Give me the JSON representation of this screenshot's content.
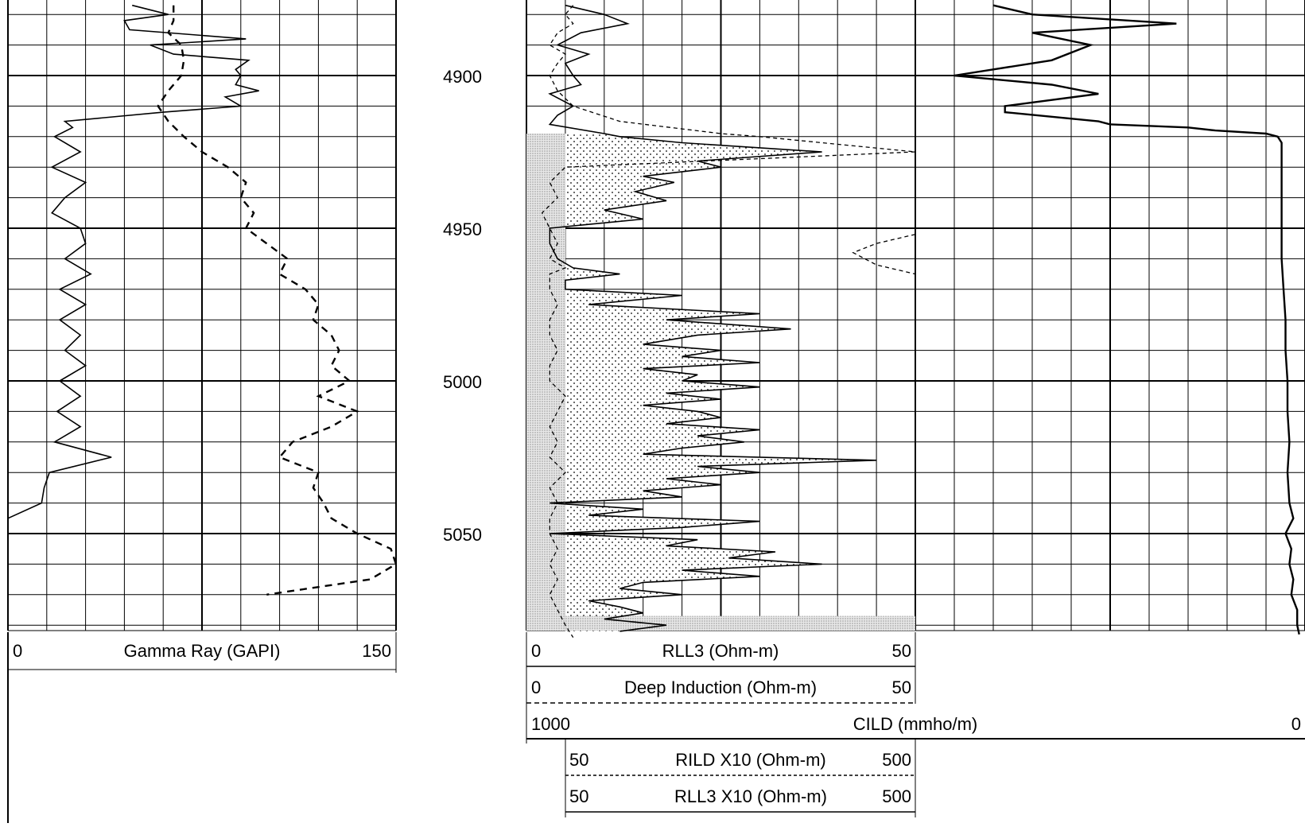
{
  "chart_data": {
    "type": "line",
    "title": "",
    "depth_axis": {
      "ticks": [
        "4900",
        "4950",
        "5000",
        "5050"
      ],
      "range": [
        4877,
        5085
      ]
    },
    "track1": {
      "name": "Gamma Ray (GAPI)",
      "min_label": "0",
      "max_label": "150",
      "range": [
        0,
        150
      ],
      "series": [
        {
          "name": "Gamma Ray (GAPI)",
          "style": "solid",
          "depth": [
            4877,
            4880,
            4882,
            4885,
            4888,
            4890,
            4893,
            4895,
            4898,
            4900,
            4903,
            4905,
            4907,
            4910,
            4912,
            4915,
            4917,
            4920,
            4925,
            4930,
            4935,
            4940,
            4945,
            4950,
            4955,
            4960,
            4965,
            4970,
            4975,
            4980,
            4985,
            4990,
            4995,
            5000,
            5005,
            5010,
            5015,
            5020,
            5025,
            5030,
            5035,
            5040,
            5045
          ],
          "values": [
            48,
            62,
            45,
            47,
            92,
            55,
            64,
            93,
            88,
            90,
            88,
            97,
            84,
            90,
            60,
            22,
            25,
            18,
            28,
            17,
            30,
            22,
            17,
            28,
            30,
            22,
            32,
            20,
            30,
            20,
            28,
            22,
            30,
            20,
            28,
            19,
            28,
            18,
            40,
            16,
            14,
            13,
            0
          ]
        },
        {
          "name": "Gamma Ray (GAPI) - curve 2",
          "style": "dashed",
          "depth": [
            4877,
            4882,
            4886,
            4890,
            4895,
            4900,
            4905,
            4910,
            4915,
            4920,
            4925,
            4930,
            4935,
            4940,
            4945,
            4950,
            4955,
            4960,
            4965,
            4970,
            4975,
            4980,
            4985,
            4990,
            4995,
            5000,
            5005,
            5010,
            5015,
            5020,
            5025,
            5030,
            5035,
            5040,
            5045,
            5050,
            5055,
            5060,
            5065,
            5070
          ],
          "values": [
            64,
            64,
            62,
            67,
            68,
            67,
            62,
            58,
            62,
            68,
            75,
            85,
            92,
            90,
            95,
            92,
            100,
            108,
            105,
            115,
            120,
            118,
            125,
            128,
            125,
            132,
            120,
            135,
            125,
            110,
            105,
            120,
            118,
            122,
            125,
            135,
            148,
            150,
            140,
            100
          ]
        }
      ]
    },
    "track2": {
      "curves": [
        {
          "name": "RLL3 (Ohm-m)",
          "min_label": "0",
          "max_label": "50",
          "style": "solid"
        },
        {
          "name": "Deep Induction (Ohm-m)",
          "min_label": "0",
          "max_label": "50",
          "style": "dashed"
        },
        {
          "name": "CILD (mmho/m)",
          "min_label": "1000",
          "max_label": "0",
          "style": "solid"
        },
        {
          "name": "RILD X10 (Ohm-m)",
          "min_label": "50",
          "max_label": "500",
          "style": "dashed"
        },
        {
          "name": "RLL3 X10 (Ohm-m)",
          "min_label": "50",
          "max_label": "500",
          "style": "solid"
        }
      ],
      "range": [
        0,
        50
      ],
      "series": [
        {
          "name": "RLL3 (Ohm-m)",
          "depth": [
            4877,
            4880,
            4883,
            4886,
            4890,
            4893,
            4896,
            4900,
            4903,
            4906,
            4910,
            4913,
            4916,
            4919,
            4920,
            4922,
            4925,
            4928,
            4930,
            4933,
            4935,
            4938,
            4941,
            4944,
            4947,
            4950,
            4955,
            4960,
            4963,
            4965,
            4967,
            4970,
            4972,
            4975,
            4978,
            4980,
            4983,
            4985,
            4988,
            4990,
            4992,
            4994,
            4996,
            4998,
            5000,
            5002,
            5004,
            5006,
            5008,
            5010,
            5012,
            5014,
            5016,
            5018,
            5020,
            5022,
            5024,
            5026,
            5028,
            5030,
            5032,
            5034,
            5036,
            5038,
            5040,
            5042,
            5044,
            5046,
            5048,
            5050,
            5052,
            5054,
            5056,
            5058,
            5060,
            5062,
            5064,
            5066,
            5068,
            5070,
            5072,
            5074,
            5076,
            5078,
            5080,
            5082
          ],
          "values": [
            5,
            10,
            13,
            7,
            4,
            8,
            5,
            6,
            7,
            3,
            6,
            4,
            3,
            10,
            12,
            20,
            38,
            22,
            25,
            15,
            19,
            14,
            18,
            10,
            15,
            3,
            3,
            4,
            6,
            12,
            5,
            5,
            20,
            8,
            30,
            18,
            34,
            22,
            15,
            25,
            20,
            30,
            15,
            22,
            20,
            30,
            18,
            25,
            15,
            22,
            25,
            18,
            30,
            22,
            28,
            20,
            15,
            45,
            22,
            30,
            18,
            25,
            15,
            20,
            3,
            15,
            8,
            30,
            20,
            3,
            22,
            18,
            32,
            26,
            38,
            20,
            30,
            15,
            12,
            20,
            8,
            12,
            15,
            10,
            18,
            12
          ]
        },
        {
          "name": "Deep Induction (Ohm-m)",
          "depth": [
            4877,
            4880,
            4883,
            4886,
            4890,
            4893,
            4896,
            4900,
            4905,
            4910,
            4915,
            4919,
            4920,
            4925,
            4930,
            4935,
            4940,
            4945,
            4950,
            4955,
            4960,
            4963,
            4965,
            4970,
            4975,
            4980,
            4985,
            4990,
            4995,
            5000,
            5005,
            5010,
            5015,
            5020,
            5025,
            5030,
            5035,
            5040,
            5045,
            5050,
            5055,
            5060,
            5065,
            5070,
            5075,
            5080,
            5084
          ],
          "values": [
            6,
            5,
            6,
            4,
            3,
            5,
            4,
            3,
            4,
            6,
            12,
            25,
            30,
            50,
            5,
            3,
            4,
            2,
            3,
            4,
            3,
            5,
            3,
            3,
            4,
            3,
            3,
            4,
            3,
            3,
            5,
            4,
            3,
            4,
            3,
            5,
            3,
            4,
            3,
            3,
            4,
            3,
            4,
            3,
            4,
            5,
            6
          ]
        },
        {
          "name": "RLL3 X10 (Ohm-m)",
          "depth": [
            4917,
            4918,
            4919,
            4920,
            4922,
            4925,
            4940,
            4945
          ],
          "values": [
            50,
            50,
            50,
            50,
            50,
            50,
            50,
            50
          ]
        },
        {
          "name": "RILD X10 (Ohm-m)",
          "depth": [
            4952,
            4955,
            4958,
            4962,
            4965,
            4968
          ],
          "values": [
            50,
            45,
            42,
            45,
            50,
            50
          ]
        }
      ]
    },
    "track3": {
      "name": "CILD (mmho/m)",
      "min_label": "1000",
      "max_label": "0",
      "range": [
        0,
        1000
      ],
      "series": [
        {
          "name": "CILD (mmho/m)",
          "depth": [
            4877,
            4880,
            4883,
            4886,
            4890,
            4895,
            4900,
            4903,
            4906,
            4910,
            4912,
            4915,
            4916,
            4917,
            4918,
            4919,
            4920,
            4922,
            4925,
            4930,
            4940,
            4950,
            4960,
            4970,
            4980,
            4990,
            5000,
            5010,
            5020,
            5030,
            5040,
            5045,
            5050,
            5055,
            5060,
            5065,
            5070,
            5075,
            5080,
            5083
          ],
          "values": [
            800,
            700,
            330,
            700,
            550,
            650,
            900,
            650,
            530,
            770,
            770,
            530,
            500,
            300,
            230,
            100,
            70,
            60,
            60,
            60,
            60,
            60,
            60,
            55,
            50,
            50,
            45,
            45,
            40,
            45,
            40,
            30,
            50,
            35,
            40,
            30,
            35,
            20,
            20,
            15
          ]
        }
      ]
    }
  }
}
